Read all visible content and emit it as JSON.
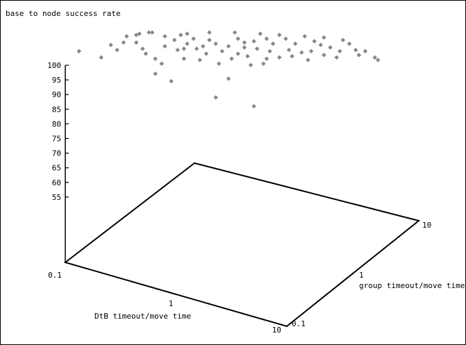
{
  "chart_data": {
    "type": "scatter",
    "title": "base to node success rate",
    "xlabel": "DtB timeout/move time",
    "ylabel": "group timeout/move time",
    "x_ticks": [
      "0.1",
      "1",
      "10"
    ],
    "y_ticks": [
      "0.1",
      "1",
      "10"
    ],
    "z_ticks": [
      "100",
      "95",
      "90",
      "85",
      "80",
      "75",
      "70",
      "65",
      "60",
      "55"
    ],
    "xlim": [
      0.1,
      10
    ],
    "ylim": [
      0.1,
      10
    ],
    "zlim": [
      55,
      100
    ],
    "x_log": true,
    "y_log": true,
    "grid": false,
    "marker_color": "#888888",
    "points": [
      {
        "u": 0.03,
        "v": 0.84
      },
      {
        "u": 0.13,
        "v": 0.89
      },
      {
        "u": 0.1,
        "v": 0.79
      },
      {
        "u": 0.17,
        "v": 0.91
      },
      {
        "u": 0.18,
        "v": 0.96
      },
      {
        "u": 0.21,
        "v": 0.97
      },
      {
        "u": 0.21,
        "v": 0.91
      },
      {
        "u": 0.22,
        "v": 0.98
      },
      {
        "u": 0.25,
        "v": 0.99
      },
      {
        "u": 0.26,
        "v": 0.99
      },
      {
        "u": 0.23,
        "v": 0.86
      },
      {
        "u": 0.24,
        "v": 0.82
      },
      {
        "u": 0.3,
        "v": 0.88
      },
      {
        "u": 0.27,
        "v": 0.78
      },
      {
        "u": 0.29,
        "v": 0.74
      },
      {
        "u": 0.33,
        "v": 0.93
      },
      {
        "u": 0.35,
        "v": 0.97
      },
      {
        "u": 0.37,
        "v": 0.98
      },
      {
        "u": 0.34,
        "v": 0.85
      },
      {
        "u": 0.37,
        "v": 0.9
      },
      {
        "u": 0.4,
        "v": 0.86
      },
      {
        "u": 0.36,
        "v": 0.78
      },
      {
        "u": 0.41,
        "v": 0.77
      },
      {
        "u": 0.44,
        "v": 0.93
      },
      {
        "u": 0.46,
        "v": 0.9
      },
      {
        "u": 0.43,
        "v": 0.82
      },
      {
        "u": 0.48,
        "v": 0.84
      },
      {
        "u": 0.47,
        "v": 0.74
      },
      {
        "u": 0.52,
        "v": 0.99
      },
      {
        "u": 0.53,
        "v": 0.94
      },
      {
        "u": 0.55,
        "v": 0.91
      },
      {
        "u": 0.5,
        "v": 0.88
      },
      {
        "u": 0.53,
        "v": 0.82
      },
      {
        "u": 0.56,
        "v": 0.8
      },
      {
        "u": 0.51,
        "v": 0.78
      },
      {
        "u": 0.57,
        "v": 0.73
      },
      {
        "u": 0.6,
        "v": 0.98
      },
      {
        "u": 0.62,
        "v": 0.94
      },
      {
        "u": 0.64,
        "v": 0.9
      },
      {
        "u": 0.59,
        "v": 0.86
      },
      {
        "u": 0.63,
        "v": 0.84
      },
      {
        "u": 0.66,
        "v": 0.79
      },
      {
        "u": 0.61,
        "v": 0.74
      },
      {
        "u": 0.68,
        "v": 0.94
      },
      {
        "u": 0.71,
        "v": 0.9
      },
      {
        "u": 0.69,
        "v": 0.85
      },
      {
        "u": 0.73,
        "v": 0.83
      },
      {
        "u": 0.75,
        "v": 0.77
      },
      {
        "u": 0.77,
        "v": 0.92
      },
      {
        "u": 0.79,
        "v": 0.89
      },
      {
        "u": 0.76,
        "v": 0.84
      },
      {
        "u": 0.8,
        "v": 0.81
      },
      {
        "u": 0.82,
        "v": 0.87
      },
      {
        "u": 0.85,
        "v": 0.84
      },
      {
        "u": 0.84,
        "v": 0.79
      },
      {
        "u": 0.88,
        "v": 0.9
      },
      {
        "u": 0.9,
        "v": 0.85
      },
      {
        "u": 0.93,
        "v": 0.84
      },
      {
        "u": 0.96,
        "v": 0.79
      },
      {
        "u": 0.27,
        "v": 0.66
      },
      {
        "u": 0.32,
        "v": 0.6
      },
      {
        "u": 0.5,
        "v": 0.62
      },
      {
        "u": 0.46,
        "v": 0.47
      },
      {
        "u": 0.58,
        "v": 0.4
      },
      {
        "u": 0.36,
        "v": 0.86
      },
      {
        "u": 0.44,
        "v": 0.99
      },
      {
        "u": 0.58,
        "v": 0.92
      },
      {
        "u": 0.66,
        "v": 0.97
      },
      {
        "u": 0.74,
        "v": 0.96
      },
      {
        "u": 0.8,
        "v": 0.95
      },
      {
        "u": 0.86,
        "v": 0.93
      },
      {
        "u": 0.3,
        "v": 0.96
      },
      {
        "u": 0.39,
        "v": 0.94
      },
      {
        "u": 0.15,
        "v": 0.85
      },
      {
        "u": 0.42,
        "v": 0.88
      },
      {
        "u": 0.55,
        "v": 0.87
      },
      {
        "u": 0.7,
        "v": 0.8
      },
      {
        "u": 0.62,
        "v": 0.78
      },
      {
        "u": 0.91,
        "v": 0.81
      },
      {
        "u": 0.97,
        "v": 0.77
      }
    ]
  }
}
